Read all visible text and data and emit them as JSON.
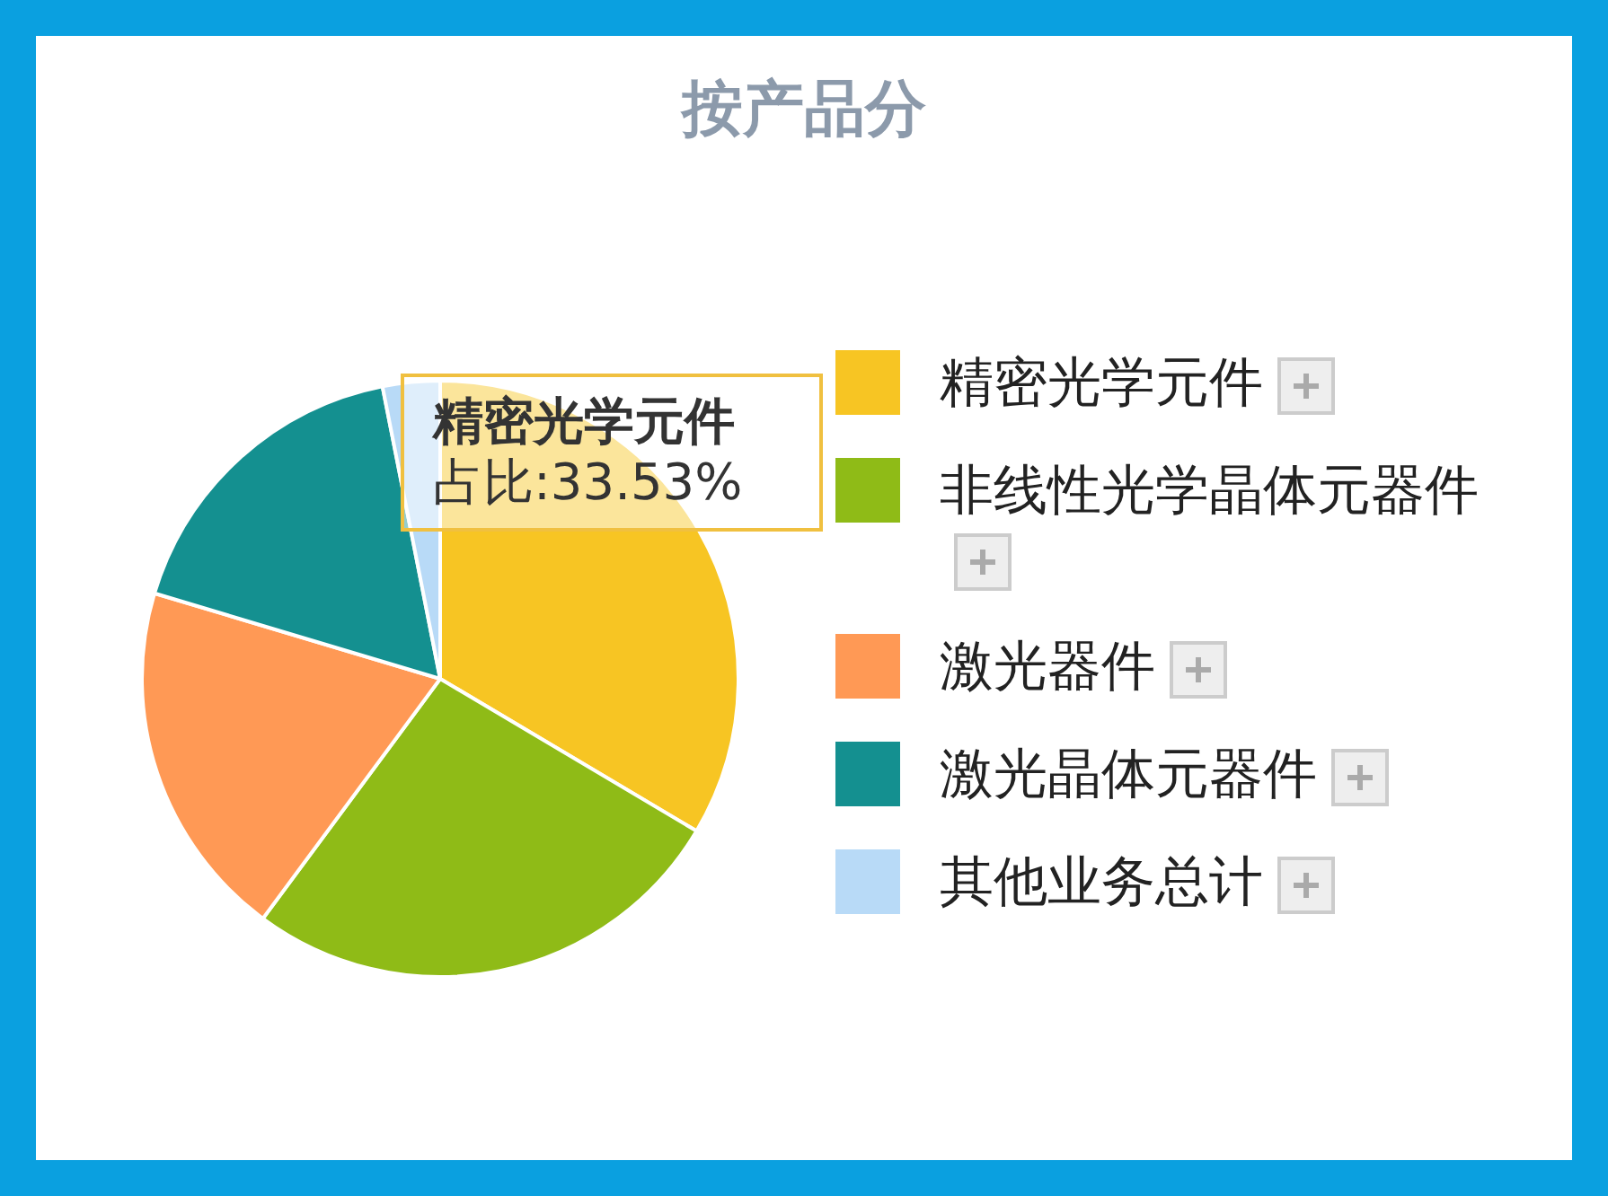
{
  "chart_data": {
    "type": "pie",
    "title": "按产品分",
    "categories": [
      "精密光学元件",
      "非线性光学晶体元器件",
      "激光器件",
      "激光晶体元器件",
      "其他业务总计"
    ],
    "values": [
      33.53,
      26.6,
      19.5,
      17.27,
      3.1
    ],
    "colors": [
      "#f7c523",
      "#8fbb17",
      "#ff9955",
      "#149090",
      "#b8daf7"
    ],
    "legend": "right",
    "annotations": [
      "精密光学元件",
      "占比:33.53%"
    ]
  }
}
